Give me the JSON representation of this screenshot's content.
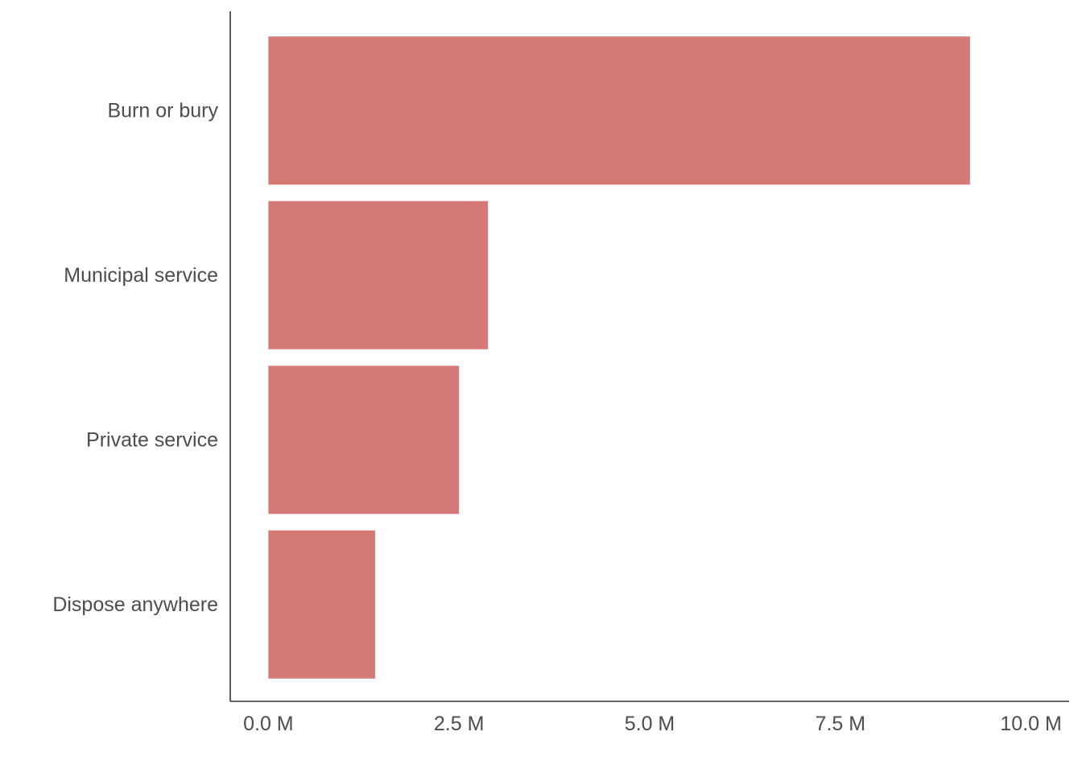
{
  "chart_data": {
    "type": "bar",
    "orientation": "horizontal",
    "categories": [
      "Burn or bury",
      "Municipal service",
      "Private service",
      "Dispose anywhere"
    ],
    "values": [
      9200000,
      2880000,
      2500000,
      1400000
    ],
    "xlim": [
      -500000,
      10500000
    ],
    "xticks": [
      0,
      2500000,
      5000000,
      7500000,
      10000000
    ],
    "xtick_labels": [
      "0.0 M",
      "2.5 M",
      "5.0 M",
      "7.5 M",
      "10.0 M"
    ],
    "bar_color": "#d67a79",
    "grid": false,
    "legend": "none"
  }
}
